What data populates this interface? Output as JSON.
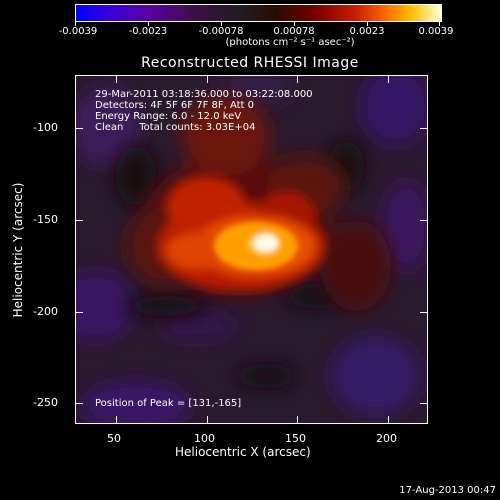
{
  "colorbar": {
    "ticks": [
      "-0.0039",
      "-0.0023",
      "-0.00078",
      "0.00078",
      "0.0023",
      "0.0039"
    ],
    "units": "(photons cm⁻² s⁻¹ asec⁻²)"
  },
  "title": "Reconstructed RHESSI Image",
  "info": {
    "time_range": "29-Mar-2011 03:18:36.000 to 03:22:08.000",
    "detectors": "Detectors: 4F 5F 6F 7F 8F, Att 0",
    "energy": "Energy Range: 6.0 - 12.0 keV",
    "clean": "Clean     Total counts: 3.03E+04",
    "peak": "Position of Peak = [131,-165]"
  },
  "axes": {
    "xlabel": "Heliocentric X (arcsec)",
    "ylabel": "Heliocentric Y (arcsec)",
    "xticks": [
      "50",
      "100",
      "150",
      "200"
    ],
    "yticks": [
      "-100",
      "-150",
      "-200",
      "-250"
    ]
  },
  "timestamp": "17-Aug-2013 00:47",
  "colors": {
    "peak_core": "#fffbe0",
    "peak_mid": "#ff9a00",
    "emission": "#d02000",
    "background": "#2a1a2e",
    "negative": "#3a1060"
  }
}
